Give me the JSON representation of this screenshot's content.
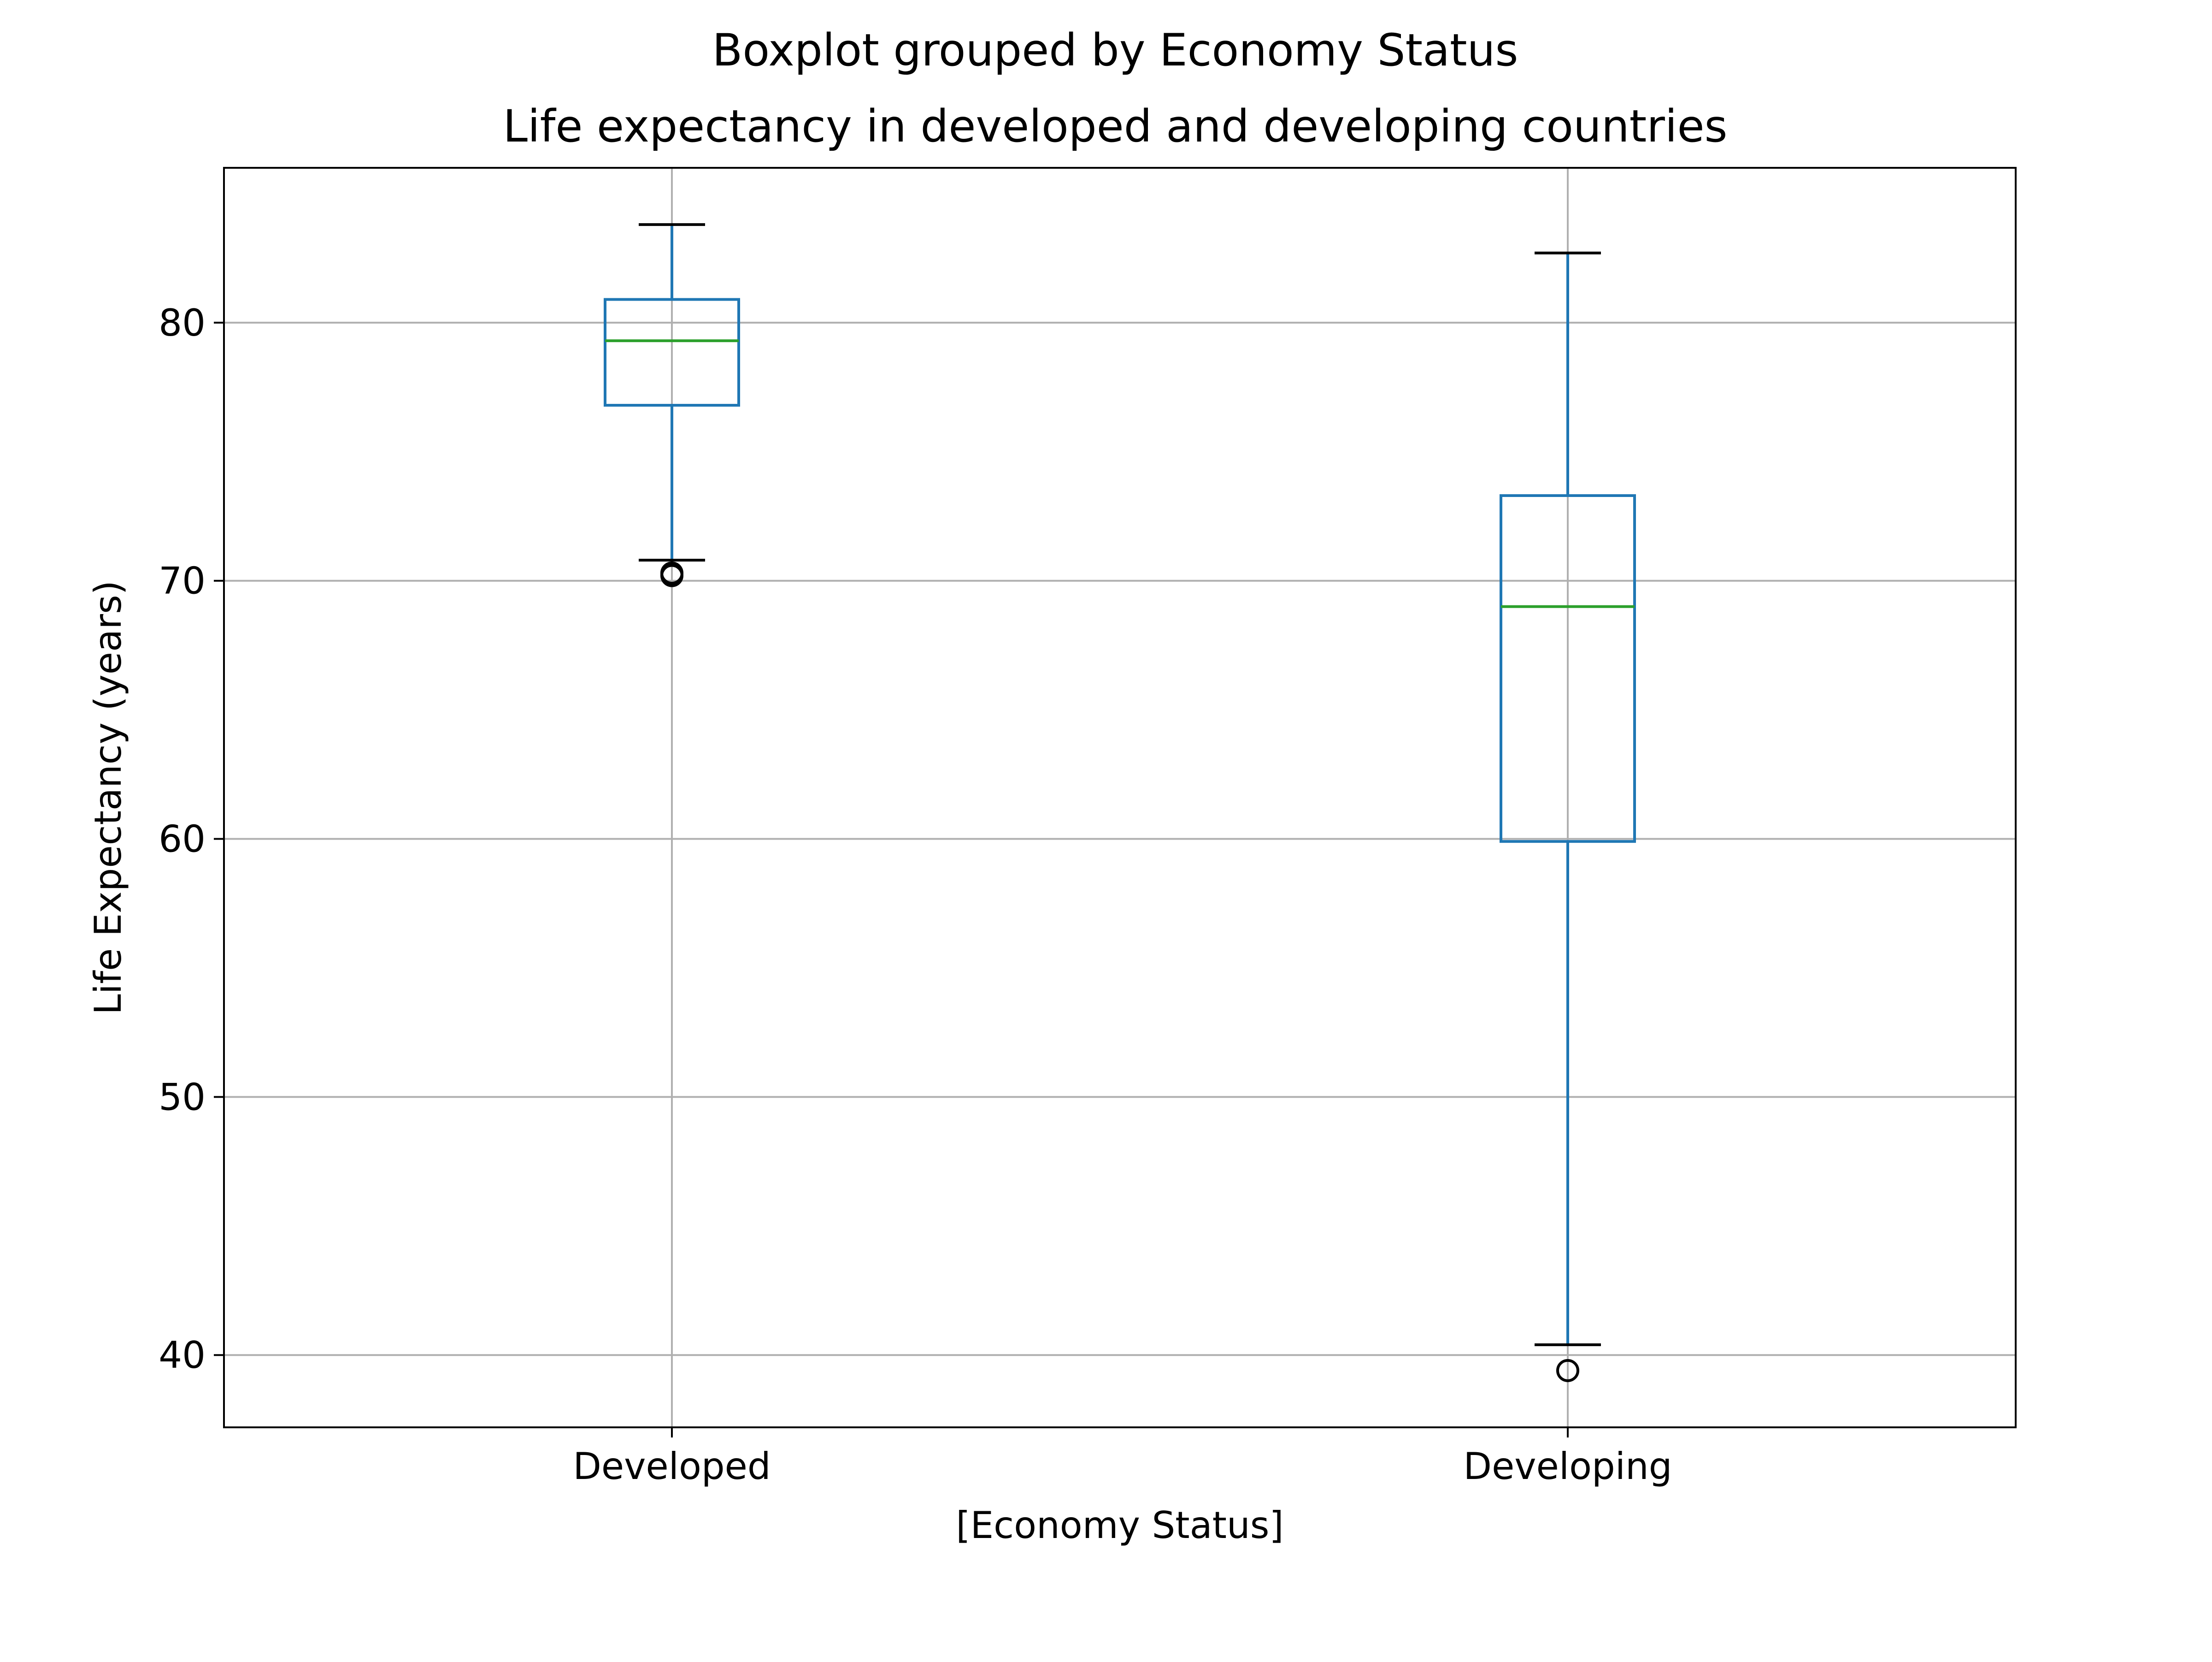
{
  "chart_data": {
    "type": "box",
    "suptitle": "Boxplot grouped by Economy Status",
    "title": "Life expectancy in developed and developing countries",
    "xlabel": "[Economy Status]",
    "ylabel": "Life Expectancy (years)",
    "categories": [
      "Developed",
      "Developing"
    ],
    "ylim": [
      37.2,
      86.0
    ],
    "yticks": [
      40,
      50,
      60,
      70,
      80
    ],
    "grid": true,
    "boxes": [
      {
        "category": "Developed",
        "whisker_low": 70.8,
        "q1": 76.8,
        "median": 79.3,
        "q3": 80.9,
        "whisker_high": 83.8,
        "outliers": [
          70.3,
          70.2
        ]
      },
      {
        "category": "Developing",
        "whisker_low": 40.4,
        "q1": 59.9,
        "median": 69.0,
        "q3": 73.3,
        "whisker_high": 82.7,
        "outliers": [
          39.4
        ]
      }
    ],
    "colors": {
      "box": "#1f77b4",
      "median": "#2ca02c",
      "cap": "#000000",
      "outlier": "#000000",
      "grid": "#b0b0b0"
    }
  }
}
